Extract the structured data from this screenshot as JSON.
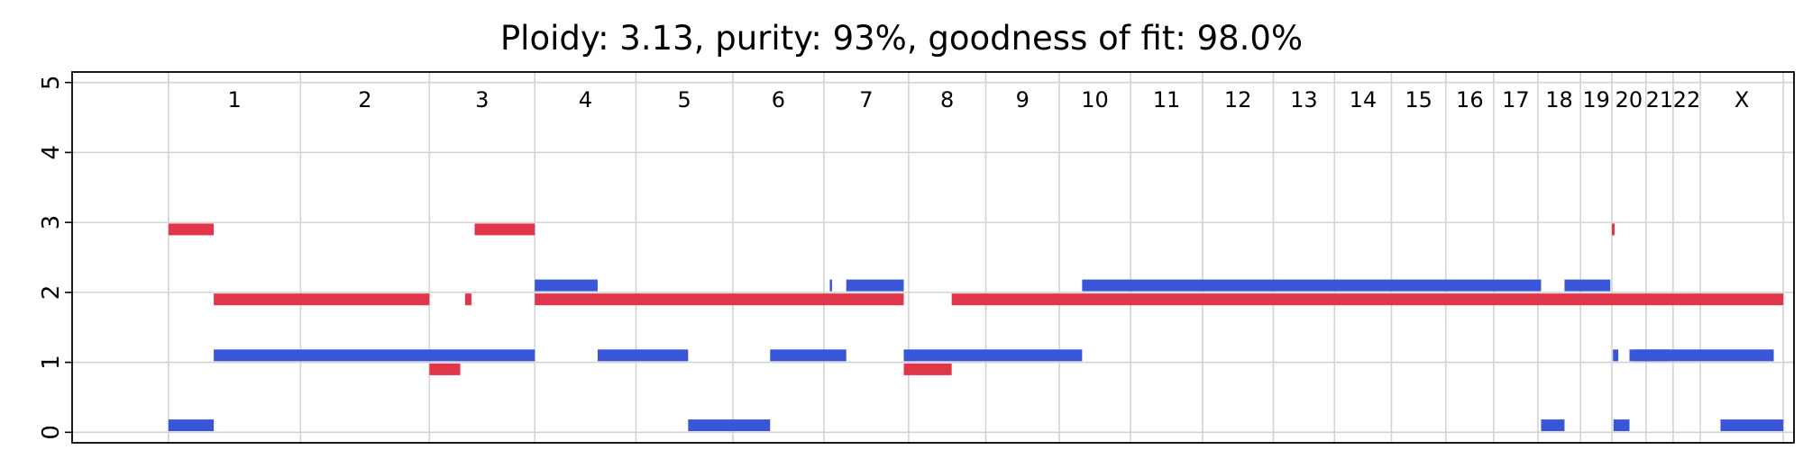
{
  "chart_data": {
    "type": "segment",
    "title": "Ploidy: 3.13, purity: 93%, goodness of fit: 98.0%",
    "xlabel": "",
    "ylabel": "",
    "ylim": [
      -0.15,
      5.15
    ],
    "yticks": [
      0,
      1,
      2,
      3,
      4,
      5
    ],
    "grid": true,
    "x_range_mb": [
      -181,
      3053
    ],
    "chromosome_boundaries": [
      0,
      248,
      490,
      688,
      878,
      1060,
      1231,
      1390,
      1535,
      1673,
      1807,
      1942,
      2075,
      2190,
      2297,
      2399,
      2489,
      2572,
      2652,
      2711,
      2775,
      2826,
      2877,
      3033
    ],
    "chromosomes": [
      "1",
      "2",
      "3",
      "4",
      "5",
      "6",
      "7",
      "8",
      "9",
      "10",
      "11",
      "12",
      "13",
      "14",
      "15",
      "16",
      "17",
      "18",
      "19",
      "20",
      "21",
      "22",
      "X"
    ],
    "series": [
      {
        "color": "#3a56d8",
        "segments": [
          {
            "x": [
              0,
              85
            ],
            "y": 0.1
          },
          {
            "x": [
              85,
              688
            ],
            "y": 1.1
          },
          {
            "x": [
              688,
              806
            ],
            "y": 2.1
          },
          {
            "x": [
              806,
              976
            ],
            "y": 1.1
          },
          {
            "x": [
              976,
              1130
            ],
            "y": 0.1
          },
          {
            "x": [
              1130,
              1273
            ],
            "y": 1.1
          },
          {
            "x": [
              1242,
              1246
            ],
            "y": 2.1
          },
          {
            "x": [
              1273,
              1381
            ],
            "y": 2.1
          },
          {
            "x": [
              1381,
              1716
            ],
            "y": 1.1
          },
          {
            "x": [
              1716,
              2578
            ],
            "y": 2.1
          },
          {
            "x": [
              2578,
              2622
            ],
            "y": 0.1
          },
          {
            "x": [
              2622,
              2708
            ],
            "y": 2.1
          },
          {
            "x": [
              2713,
              2723
            ],
            "y": 1.1
          },
          {
            "x": [
              2714,
              2744
            ],
            "y": 0.1
          },
          {
            "x": [
              2752,
              2820
            ],
            "y": 1.1
          },
          {
            "x": [
              2744,
              3015
            ],
            "y": 1.1
          },
          {
            "x": [
              2915,
              3033
            ],
            "y": 0.1
          }
        ]
      },
      {
        "color": "#e0364a",
        "segments": [
          {
            "x": [
              0,
              85
            ],
            "y": 2.9
          },
          {
            "x": [
              85,
              490
            ],
            "y": 1.9
          },
          {
            "x": [
              490,
              548
            ],
            "y": 0.9
          },
          {
            "x": [
              557,
              569
            ],
            "y": 1.9
          },
          {
            "x": [
              575,
              688
            ],
            "y": 2.9
          },
          {
            "x": [
              688,
              1381
            ],
            "y": 1.9
          },
          {
            "x": [
              1381,
              1471
            ],
            "y": 0.9
          },
          {
            "x": [
              1471,
              3033
            ],
            "y": 1.9
          },
          {
            "x": [
              2711,
              2716
            ],
            "y": 2.9
          }
        ]
      }
    ]
  }
}
